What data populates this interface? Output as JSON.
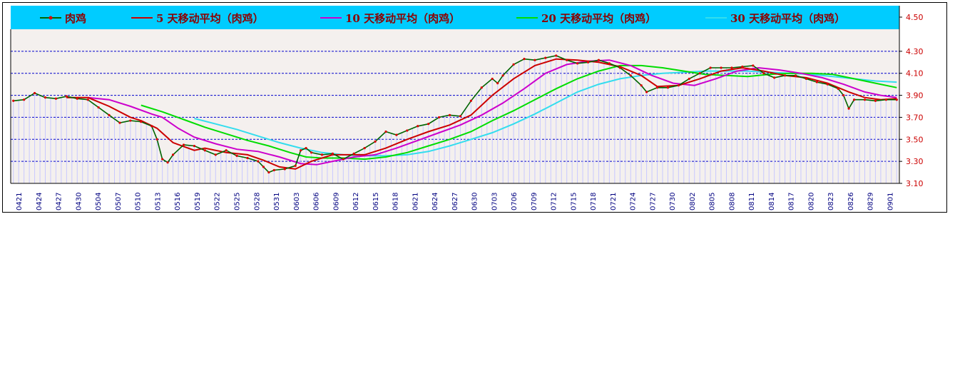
{
  "chart_data": {
    "type": "line",
    "title": "",
    "xlabel": "",
    "ylabel": "",
    "ylim": [
      3.1,
      4.5
    ],
    "y_ticks": [
      "3.10",
      "3.30",
      "3.50",
      "3.70",
      "3.90",
      "4.10",
      "4.30",
      "4.50"
    ],
    "grid": true,
    "legend_position": "top",
    "x_tick_labels": [
      "0421",
      "0424",
      "0427",
      "0430",
      "0504",
      "0507",
      "0510",
      "0513",
      "0516",
      "0519",
      "0522",
      "0525",
      "0528",
      "0531",
      "0603",
      "0606",
      "0609",
      "0612",
      "0615",
      "0618",
      "0621",
      "0624",
      "0627",
      "0630",
      "0703",
      "0706",
      "0709",
      "0712",
      "0715",
      "0718",
      "0721",
      "0724",
      "0727",
      "0730",
      "0802",
      "0805",
      "0808",
      "0811",
      "0814",
      "0817",
      "0820",
      "0823",
      "0826",
      "0829",
      "0901"
    ],
    "series": [
      {
        "name": "肉鸡",
        "color": "#006400",
        "marker": true,
        "points": [
          [
            0,
            3.85
          ],
          [
            2,
            3.86
          ],
          [
            4,
            3.92
          ],
          [
            6,
            3.88
          ],
          [
            8,
            3.87
          ],
          [
            10,
            3.89
          ],
          [
            12,
            3.87
          ],
          [
            14,
            3.86
          ],
          [
            16,
            3.79
          ],
          [
            18,
            3.72
          ],
          [
            20,
            3.65
          ],
          [
            22,
            3.67
          ],
          [
            24,
            3.66
          ],
          [
            26,
            3.62
          ],
          [
            27,
            3.5
          ],
          [
            28,
            3.32
          ],
          [
            29,
            3.29
          ],
          [
            30,
            3.36
          ],
          [
            32,
            3.45
          ],
          [
            34,
            3.44
          ],
          [
            36,
            3.4
          ],
          [
            38,
            3.36
          ],
          [
            40,
            3.4
          ],
          [
            42,
            3.35
          ],
          [
            44,
            3.33
          ],
          [
            46,
            3.3
          ],
          [
            47,
            3.25
          ],
          [
            48,
            3.2
          ],
          [
            49,
            3.22
          ],
          [
            51,
            3.23
          ],
          [
            53,
            3.26
          ],
          [
            54,
            3.4
          ],
          [
            55,
            3.42
          ],
          [
            56,
            3.38
          ],
          [
            58,
            3.36
          ],
          [
            60,
            3.37
          ],
          [
            62,
            3.32
          ],
          [
            64,
            3.37
          ],
          [
            66,
            3.42
          ],
          [
            68,
            3.48
          ],
          [
            70,
            3.57
          ],
          [
            72,
            3.54
          ],
          [
            74,
            3.58
          ],
          [
            76,
            3.62
          ],
          [
            78,
            3.64
          ],
          [
            80,
            3.7
          ],
          [
            82,
            3.72
          ],
          [
            84,
            3.71
          ],
          [
            86,
            3.85
          ],
          [
            88,
            3.97
          ],
          [
            90,
            4.05
          ],
          [
            91,
            4.01
          ],
          [
            92,
            4.08
          ],
          [
            94,
            4.18
          ],
          [
            96,
            4.23
          ],
          [
            98,
            4.22
          ],
          [
            100,
            4.24
          ],
          [
            102,
            4.26
          ],
          [
            104,
            4.22
          ],
          [
            106,
            4.19
          ],
          [
            108,
            4.2
          ],
          [
            110,
            4.22
          ],
          [
            112,
            4.19
          ],
          [
            114,
            4.15
          ],
          [
            116,
            4.08
          ],
          [
            118,
            3.99
          ],
          [
            119,
            3.93
          ],
          [
            121,
            3.97
          ],
          [
            123,
            3.97
          ],
          [
            125,
            3.99
          ],
          [
            127,
            4.05
          ],
          [
            129,
            4.1
          ],
          [
            131,
            4.15
          ],
          [
            133,
            4.15
          ],
          [
            135,
            4.15
          ],
          [
            137,
            4.16
          ],
          [
            139,
            4.17
          ],
          [
            141,
            4.1
          ],
          [
            143,
            4.06
          ],
          [
            145,
            4.08
          ],
          [
            147,
            4.08
          ],
          [
            149,
            4.05
          ],
          [
            151,
            4.02
          ],
          [
            153,
            4.0
          ],
          [
            155,
            3.96
          ],
          [
            156,
            3.9
          ],
          [
            157,
            3.78
          ],
          [
            158,
            3.86
          ],
          [
            160,
            3.86
          ],
          [
            162,
            3.85
          ],
          [
            164,
            3.86
          ],
          [
            166,
            3.86
          ]
        ]
      },
      {
        "name": "5 天移动平均（肉鸡）",
        "color": "#cc0000",
        "marker": false,
        "points": [
          [
            10,
            3.88
          ],
          [
            14,
            3.88
          ],
          [
            18,
            3.8
          ],
          [
            22,
            3.7
          ],
          [
            24,
            3.67
          ],
          [
            27,
            3.6
          ],
          [
            30,
            3.47
          ],
          [
            34,
            3.4
          ],
          [
            36,
            3.42
          ],
          [
            40,
            3.38
          ],
          [
            44,
            3.36
          ],
          [
            47,
            3.31
          ],
          [
            50,
            3.25
          ],
          [
            53,
            3.23
          ],
          [
            56,
            3.3
          ],
          [
            60,
            3.36
          ],
          [
            63,
            3.36
          ],
          [
            66,
            3.36
          ],
          [
            70,
            3.42
          ],
          [
            74,
            3.5
          ],
          [
            78,
            3.57
          ],
          [
            82,
            3.63
          ],
          [
            86,
            3.72
          ],
          [
            90,
            3.9
          ],
          [
            94,
            4.05
          ],
          [
            98,
            4.17
          ],
          [
            102,
            4.23
          ],
          [
            106,
            4.22
          ],
          [
            110,
            4.2
          ],
          [
            114,
            4.16
          ],
          [
            118,
            4.08
          ],
          [
            121,
            3.98
          ],
          [
            125,
            3.99
          ],
          [
            129,
            4.05
          ],
          [
            133,
            4.12
          ],
          [
            137,
            4.15
          ],
          [
            141,
            4.12
          ],
          [
            145,
            4.08
          ],
          [
            149,
            4.06
          ],
          [
            153,
            4.01
          ],
          [
            157,
            3.93
          ],
          [
            160,
            3.88
          ],
          [
            163,
            3.86
          ],
          [
            166,
            3.87
          ]
        ]
      },
      {
        "name": "10 天移动平均（肉鸡）",
        "color": "#cc00cc",
        "marker": false,
        "points": [
          [
            14,
            3.88
          ],
          [
            18,
            3.86
          ],
          [
            22,
            3.8
          ],
          [
            26,
            3.73
          ],
          [
            28,
            3.7
          ],
          [
            31,
            3.6
          ],
          [
            34,
            3.52
          ],
          [
            38,
            3.46
          ],
          [
            42,
            3.41
          ],
          [
            46,
            3.39
          ],
          [
            50,
            3.34
          ],
          [
            54,
            3.28
          ],
          [
            57,
            3.27
          ],
          [
            60,
            3.3
          ],
          [
            64,
            3.34
          ],
          [
            68,
            3.36
          ],
          [
            72,
            3.42
          ],
          [
            76,
            3.49
          ],
          [
            80,
            3.56
          ],
          [
            84,
            3.63
          ],
          [
            88,
            3.72
          ],
          [
            92,
            3.83
          ],
          [
            96,
            3.96
          ],
          [
            100,
            4.1
          ],
          [
            104,
            4.18
          ],
          [
            108,
            4.21
          ],
          [
            112,
            4.22
          ],
          [
            116,
            4.17
          ],
          [
            120,
            4.08
          ],
          [
            124,
            4.01
          ],
          [
            128,
            3.99
          ],
          [
            132,
            4.05
          ],
          [
            136,
            4.12
          ],
          [
            140,
            4.15
          ],
          [
            144,
            4.13
          ],
          [
            148,
            4.1
          ],
          [
            152,
            4.06
          ],
          [
            156,
            4.0
          ],
          [
            160,
            3.93
          ],
          [
            163,
            3.9
          ],
          [
            166,
            3.88
          ]
        ]
      },
      {
        "name": "20 天移动平均（肉鸡）",
        "color": "#00dd00",
        "marker": false,
        "points": [
          [
            24,
            3.81
          ],
          [
            28,
            3.75
          ],
          [
            32,
            3.68
          ],
          [
            36,
            3.61
          ],
          [
            40,
            3.55
          ],
          [
            44,
            3.49
          ],
          [
            48,
            3.44
          ],
          [
            52,
            3.38
          ],
          [
            55,
            3.34
          ],
          [
            58,
            3.33
          ],
          [
            62,
            3.33
          ],
          [
            66,
            3.32
          ],
          [
            70,
            3.34
          ],
          [
            74,
            3.38
          ],
          [
            78,
            3.44
          ],
          [
            82,
            3.5
          ],
          [
            86,
            3.57
          ],
          [
            90,
            3.67
          ],
          [
            94,
            3.76
          ],
          [
            98,
            3.86
          ],
          [
            102,
            3.96
          ],
          [
            106,
            4.05
          ],
          [
            110,
            4.12
          ],
          [
            114,
            4.17
          ],
          [
            118,
            4.17
          ],
          [
            122,
            4.15
          ],
          [
            126,
            4.12
          ],
          [
            130,
            4.09
          ],
          [
            134,
            4.08
          ],
          [
            138,
            4.07
          ],
          [
            142,
            4.09
          ],
          [
            146,
            4.1
          ],
          [
            150,
            4.1
          ],
          [
            154,
            4.09
          ],
          [
            158,
            4.05
          ],
          [
            162,
            4.01
          ],
          [
            166,
            3.97
          ]
        ]
      },
      {
        "name": "30 天移动平均（肉鸡）",
        "color": "#33ddee",
        "marker": false,
        "points": [
          [
            34,
            3.69
          ],
          [
            38,
            3.64
          ],
          [
            42,
            3.59
          ],
          [
            46,
            3.53
          ],
          [
            50,
            3.47
          ],
          [
            54,
            3.42
          ],
          [
            58,
            3.38
          ],
          [
            62,
            3.36
          ],
          [
            66,
            3.35
          ],
          [
            70,
            3.35
          ],
          [
            74,
            3.36
          ],
          [
            78,
            3.39
          ],
          [
            82,
            3.44
          ],
          [
            86,
            3.5
          ],
          [
            90,
            3.56
          ],
          [
            94,
            3.64
          ],
          [
            98,
            3.73
          ],
          [
            102,
            3.83
          ],
          [
            106,
            3.93
          ],
          [
            110,
            4.0
          ],
          [
            114,
            4.05
          ],
          [
            118,
            4.08
          ],
          [
            122,
            4.1
          ],
          [
            126,
            4.11
          ],
          [
            130,
            4.12
          ],
          [
            134,
            4.12
          ],
          [
            138,
            4.12
          ],
          [
            142,
            4.11
          ],
          [
            146,
            4.1
          ],
          [
            150,
            4.09
          ],
          [
            154,
            4.07
          ],
          [
            158,
            4.05
          ],
          [
            162,
            4.03
          ],
          [
            166,
            4.02
          ]
        ]
      }
    ]
  },
  "colors": {
    "legend_band": "#00ccff",
    "bars": "#c8c8ff",
    "grid": "#0000cc",
    "marker": "#dd0000"
  }
}
